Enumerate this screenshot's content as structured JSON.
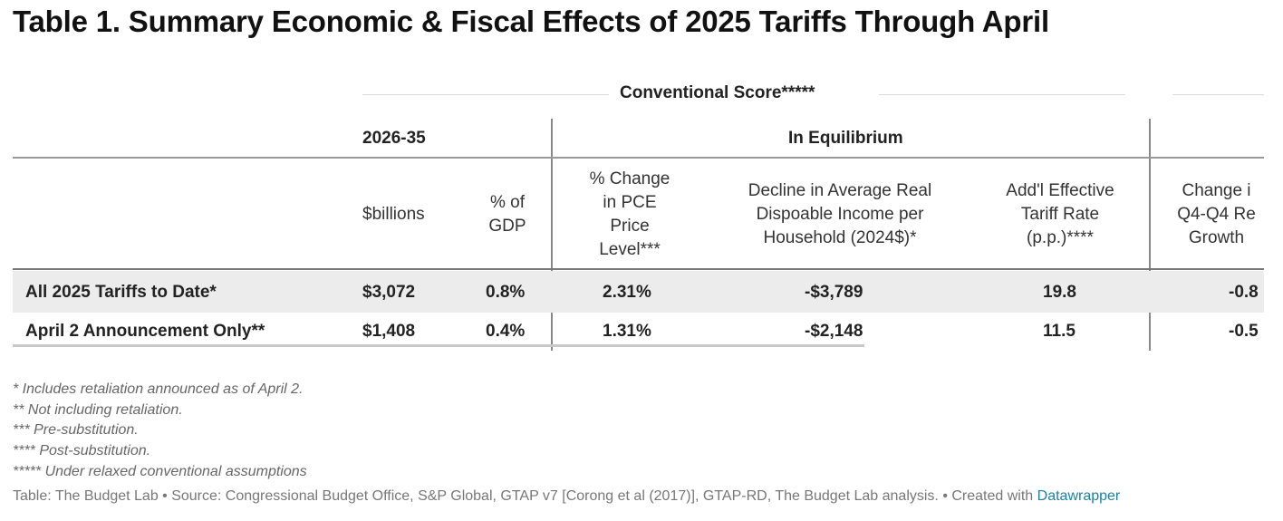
{
  "title": "Table 1. Summary Economic & Fiscal Effects of 2025 Tariffs Through April",
  "spanner": "Conventional Score*****",
  "groups": {
    "period": "2026-35",
    "equilibrium": "In Equilibrium"
  },
  "columns": {
    "billions": "$billions",
    "gdp": [
      "% of",
      "GDP"
    ],
    "pce": [
      "% Change",
      "in PCE",
      "Price",
      "Level***"
    ],
    "income": [
      "Decline in Average Real",
      "Dispoable Income per",
      "Household (2024$)*"
    ],
    "tariff": [
      "Add'l Effective",
      "Tariff Rate",
      "(p.p.)****"
    ],
    "growth": [
      "Change i",
      "Q4-Q4 Re",
      "Growth"
    ]
  },
  "rows": [
    {
      "label": "All 2025 Tariffs to Date*",
      "billions": "$3,072",
      "gdp": "0.8%",
      "pce": "2.31%",
      "income": "-$3,789",
      "tariff": "19.8",
      "growth": "-0.8"
    },
    {
      "label": "April 2 Announcement Only**",
      "billions": "$1,408",
      "gdp": "0.4%",
      "pce": "1.31%",
      "income": "-$2,148",
      "tariff": "11.5",
      "growth": "-0.5"
    }
  ],
  "notes": [
    "* Includes retaliation announced as of April 2.",
    "** Not including retaliation.",
    "*** Pre-substitution.",
    "**** Post-substitution.",
    "***** Under relaxed conventional assumptions"
  ],
  "source": {
    "text": "Table: The Budget Lab • Source: Congressional Budget Office, S&P Global, GTAP v7 [Corong et al (2017)], GTAP-RD, The Budget Lab analysis. • Created with ",
    "link": "Datawrapper"
  },
  "colors": {
    "row_shading": "#ececec",
    "link": "#1d81a2"
  }
}
